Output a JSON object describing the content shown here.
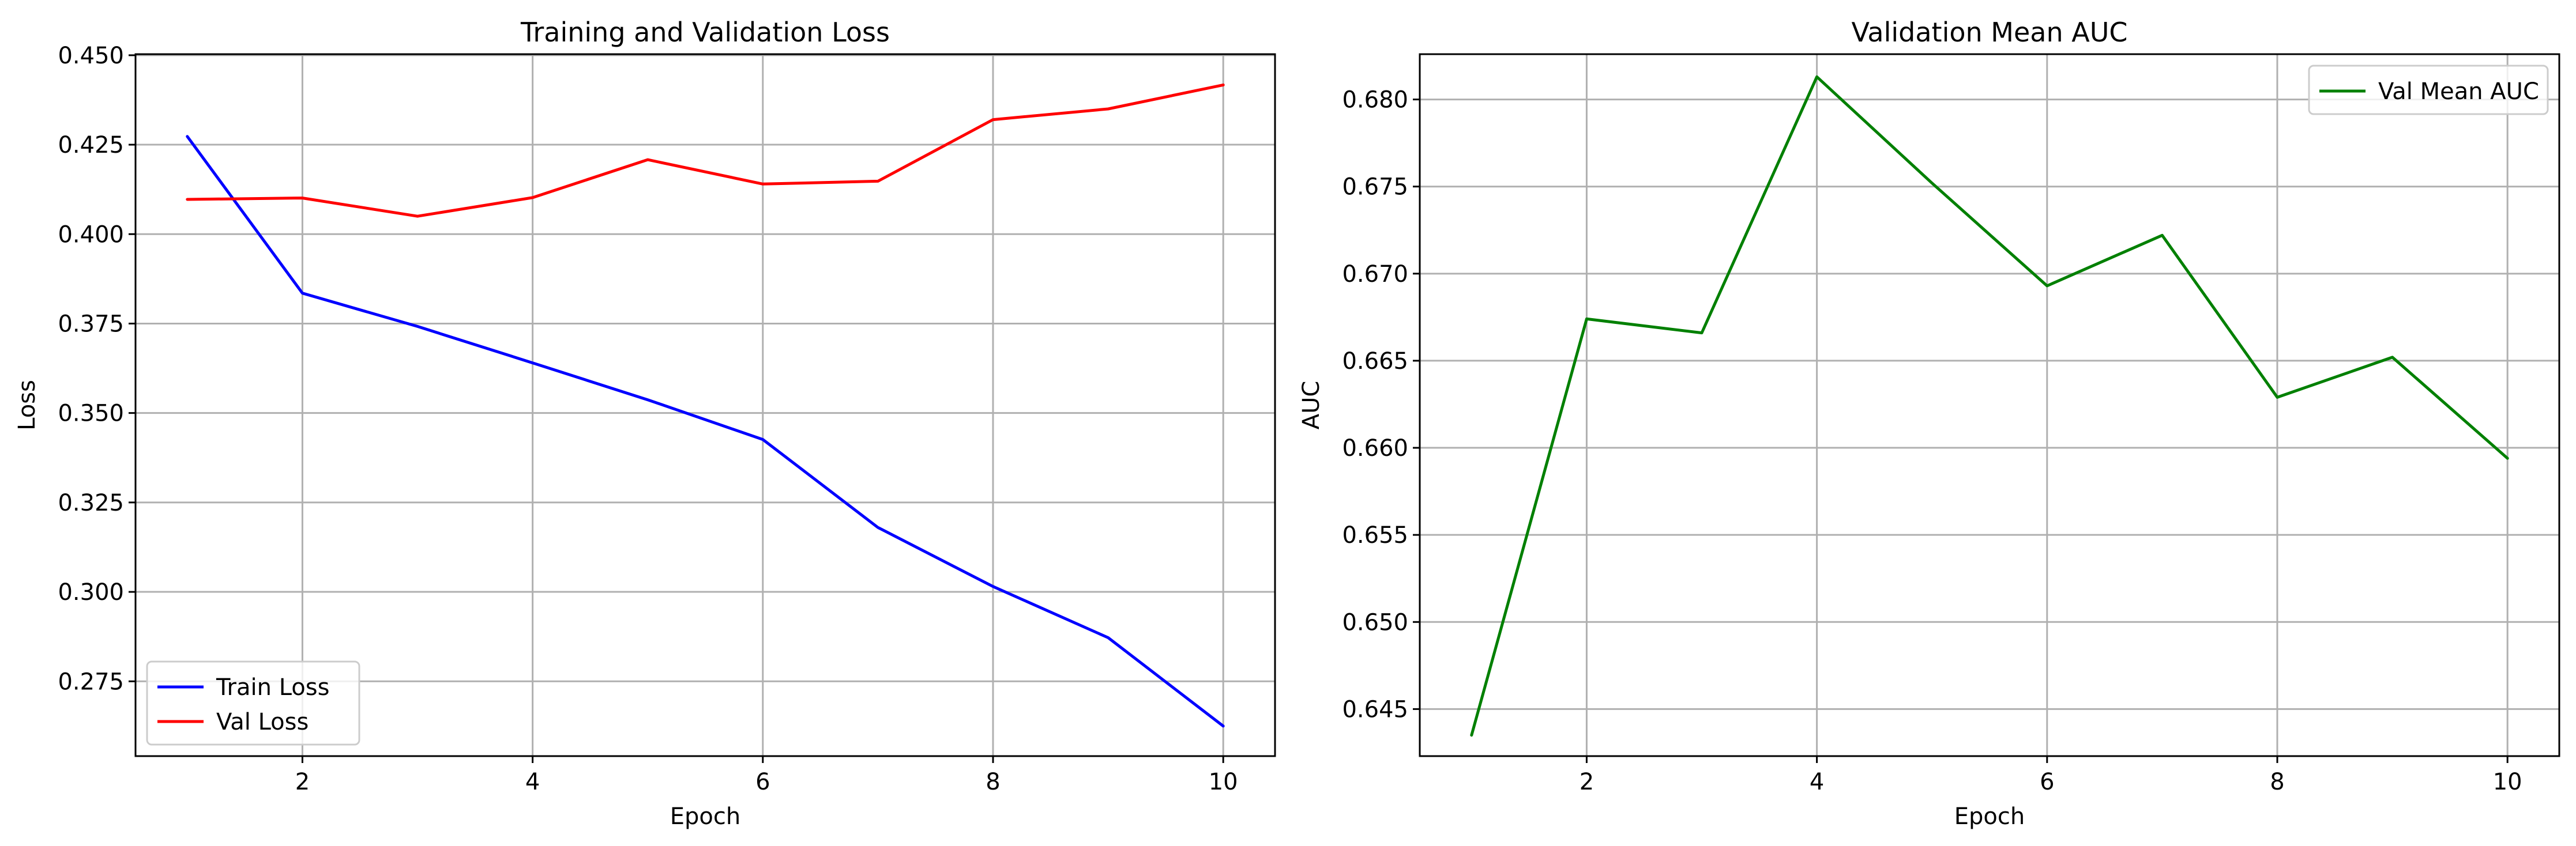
{
  "chart_data": [
    {
      "type": "line",
      "title": "Training and Validation Loss",
      "xlabel": "Epoch",
      "ylabel": "Loss",
      "x": [
        1,
        2,
        3,
        4,
        5,
        6,
        7,
        8,
        9,
        10
      ],
      "xlim": [
        0.55,
        10.45
      ],
      "ylim": [
        0.2541,
        0.4503
      ],
      "xticks": [
        2,
        4,
        6,
        8,
        10
      ],
      "xtick_labels": [
        "2",
        "4",
        "6",
        "8",
        "10"
      ],
      "yticks": [
        0.275,
        0.3,
        0.325,
        0.35,
        0.375,
        0.4,
        0.425,
        0.45
      ],
      "ytick_labels": [
        "0.275",
        "0.300",
        "0.325",
        "0.350",
        "0.375",
        "0.400",
        "0.425",
        "0.450"
      ],
      "grid": true,
      "legend_position": "lower-left",
      "series": [
        {
          "name": "Train Loss",
          "color": "#0000ff",
          "values": [
            0.4273,
            0.3835,
            0.3742,
            0.364,
            0.3537,
            0.3426,
            0.318,
            0.3015,
            0.2872,
            0.2625
          ]
        },
        {
          "name": "Val Loss",
          "color": "#ff0000",
          "values": [
            0.4097,
            0.4101,
            0.405,
            0.4102,
            0.4208,
            0.414,
            0.4148,
            0.432,
            0.435,
            0.4417
          ]
        }
      ]
    },
    {
      "type": "line",
      "title": "Validation Mean AUC",
      "xlabel": "Epoch",
      "ylabel": "AUC",
      "x": [
        1,
        2,
        3,
        4,
        5,
        6,
        7,
        8,
        9,
        10
      ],
      "xlim": [
        0.55,
        10.45
      ],
      "ylim": [
        0.6423,
        0.6826
      ],
      "xticks": [
        2,
        4,
        6,
        8,
        10
      ],
      "xtick_labels": [
        "2",
        "4",
        "6",
        "8",
        "10"
      ],
      "yticks": [
        0.645,
        0.65,
        0.655,
        0.66,
        0.665,
        0.67,
        0.675,
        0.68
      ],
      "ytick_labels": [
        "0.645",
        "0.650",
        "0.655",
        "0.660",
        "0.665",
        "0.670",
        "0.675",
        "0.680"
      ],
      "grid": true,
      "legend_position": "upper-right",
      "series": [
        {
          "name": "Val Mean AUC",
          "color": "#008000",
          "values": [
            0.6435,
            0.6674,
            0.6666,
            0.6813,
            0.6752,
            0.6693,
            0.6722,
            0.6629,
            0.6652,
            0.6594
          ]
        }
      ]
    }
  ]
}
